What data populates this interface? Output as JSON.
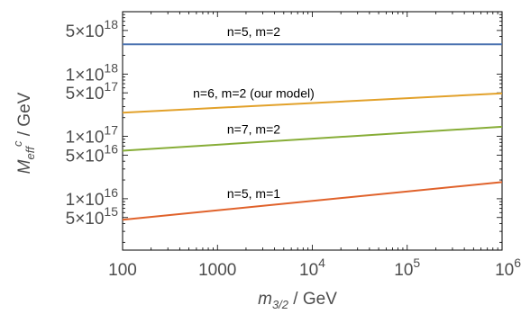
{
  "chart_data": {
    "type": "line",
    "title": "",
    "xlabel": {
      "base": "m",
      "sub": "3/2",
      "unit": " / GeV"
    },
    "ylabel": {
      "base": "M",
      "sub": "eff",
      "sup": "c",
      "unit": " / GeV"
    },
    "x_scale": "log",
    "y_scale": "log",
    "xlim": [
      100,
      1000000
    ],
    "ylim": [
      1500000000000000.0,
      1e+19
    ],
    "grid": false,
    "frame_color": "#000000",
    "x_ticks": [
      {
        "value": 100,
        "mantissa": "100",
        "exp": ""
      },
      {
        "value": 1000,
        "mantissa": "1000",
        "exp": ""
      },
      {
        "value": 10000,
        "mantissa": "10",
        "exp": "4"
      },
      {
        "value": 100000,
        "mantissa": "10",
        "exp": "5"
      },
      {
        "value": 1000000,
        "mantissa": "10",
        "exp": "6"
      }
    ],
    "y_ticks": [
      {
        "value": 5000000000000000.0,
        "mantissa": "5×10",
        "exp": "15"
      },
      {
        "value": 1e+16,
        "mantissa": "1×10",
        "exp": "16"
      },
      {
        "value": 5e+16,
        "mantissa": "5×10",
        "exp": "16"
      },
      {
        "value": 1e+17,
        "mantissa": "1×10",
        "exp": "17"
      },
      {
        "value": 5e+17,
        "mantissa": "5×10",
        "exp": "17"
      },
      {
        "value": 1e+18,
        "mantissa": "1×10",
        "exp": "18"
      },
      {
        "value": 5e+18,
        "mantissa": "5×10",
        "exp": "18"
      }
    ],
    "series": [
      {
        "name": "n=5, m=2",
        "color": "#4a72b0",
        "x": [
          100,
          1000000
        ],
        "y": [
          3e+18,
          3e+18
        ],
        "label_x": 3000
      },
      {
        "name": "n=6, m=2 (our model)",
        "color": "#e2a12a",
        "x": [
          100,
          1000000
        ],
        "y": [
          2.4e+17,
          4.9e+17
        ],
        "label_x": 3000
      },
      {
        "name": "n=7, m=2",
        "color": "#87ad37",
        "x": [
          100,
          1000000
        ],
        "y": [
          5.9e+16,
          1.43e+17
        ],
        "label_x": 3000
      },
      {
        "name": "n=5, m=1",
        "color": "#e0622b",
        "x": [
          100,
          1000000
        ],
        "y": [
          4600000000000000.0,
          1.85e+16
        ],
        "label_x": 3000
      }
    ]
  }
}
